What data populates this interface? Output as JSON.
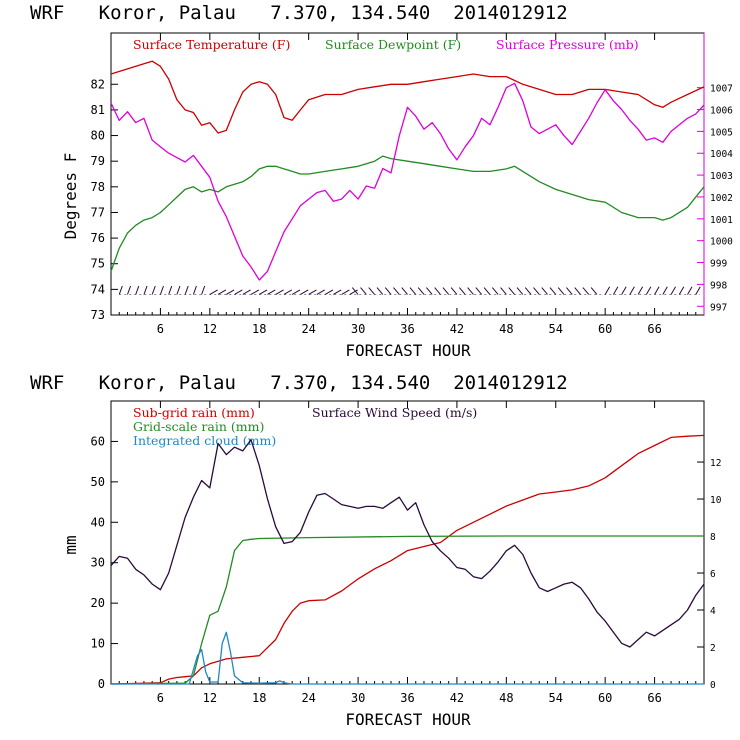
{
  "colors": {
    "temperature": "#cc0000",
    "dewpoint": "#228b22",
    "pressure": "#dd00dd",
    "subgrid_rain": "#cc0000",
    "gridscale_rain": "#228b22",
    "cloud": "#1e88c8",
    "wind": "#2a0a3a",
    "axis": "#000000"
  },
  "chart_data": [
    {
      "type": "line",
      "title": "WRF   Koror, Palau   7.370, 134.540  2014012912",
      "xlabel": "FORECAST HOUR",
      "ylabel": "Degrees F",
      "y2label": "",
      "xlim": [
        0,
        72
      ],
      "ylim": [
        73,
        84
      ],
      "y2lim": [
        996.6,
        1009.5
      ],
      "xticks": [
        "6",
        "12",
        "18",
        "24",
        "30",
        "36",
        "42",
        "48",
        "54",
        "60",
        "66"
      ],
      "yticks": [
        "73",
        "74",
        "75",
        "76",
        "77",
        "78",
        "79",
        "80",
        "81",
        "82"
      ],
      "y2ticks": [
        "997",
        "998",
        "999",
        "1000",
        "1001",
        "1002",
        "1003",
        "1004",
        "1005",
        "1006",
        "1007"
      ],
      "legend_placement": "top",
      "series": [
        {
          "name": "Surface Temperature (F)",
          "axis": "left",
          "x": [
            0,
            2,
            4,
            5,
            6,
            7,
            8,
            9,
            10,
            11,
            12,
            13,
            14,
            15,
            16,
            17,
            18,
            19,
            20,
            21,
            22,
            23,
            24,
            26,
            28,
            30,
            32,
            34,
            36,
            38,
            40,
            42,
            44,
            46,
            48,
            50,
            52,
            54,
            56,
            58,
            60,
            62,
            64,
            66,
            67,
            68,
            70,
            72
          ],
          "y": [
            82.4,
            82.6,
            82.8,
            82.9,
            82.7,
            82.2,
            81.4,
            81.0,
            80.9,
            80.4,
            80.5,
            80.1,
            80.2,
            81.0,
            81.7,
            82.0,
            82.1,
            82.0,
            81.6,
            80.7,
            80.6,
            81.0,
            81.4,
            81.6,
            81.6,
            81.8,
            81.9,
            82.0,
            82.0,
            82.1,
            82.2,
            82.3,
            82.4,
            82.3,
            82.3,
            82.0,
            81.8,
            81.6,
            81.6,
            81.8,
            81.8,
            81.7,
            81.6,
            81.2,
            81.1,
            81.3,
            81.6,
            81.9
          ]
        },
        {
          "name": "Surface Dewpoint (F)",
          "axis": "left",
          "x": [
            0,
            1,
            2,
            3,
            4,
            5,
            6,
            7,
            8,
            9,
            10,
            11,
            12,
            13,
            14,
            15,
            16,
            17,
            18,
            19,
            20,
            21,
            22,
            23,
            24,
            26,
            28,
            30,
            32,
            33,
            34,
            36,
            38,
            40,
            42,
            44,
            46,
            48,
            49,
            50,
            52,
            54,
            56,
            58,
            60,
            62,
            64,
            66,
            67,
            68,
            70,
            72
          ],
          "y": [
            74.7,
            75.6,
            76.2,
            76.5,
            76.7,
            76.8,
            77.0,
            77.3,
            77.6,
            77.9,
            78.0,
            77.8,
            77.9,
            77.8,
            78.0,
            78.1,
            78.2,
            78.4,
            78.7,
            78.8,
            78.8,
            78.7,
            78.6,
            78.5,
            78.5,
            78.6,
            78.7,
            78.8,
            79.0,
            79.2,
            79.1,
            79.0,
            78.9,
            78.8,
            78.7,
            78.6,
            78.6,
            78.7,
            78.8,
            78.6,
            78.2,
            77.9,
            77.7,
            77.5,
            77.4,
            77.0,
            76.8,
            76.8,
            76.7,
            76.8,
            77.2,
            78.0
          ]
        },
        {
          "name": "Surface Pressure (mb)",
          "axis": "right",
          "x": [
            0,
            1,
            2,
            3,
            4,
            5,
            6,
            7,
            8,
            9,
            10,
            11,
            12,
            13,
            14,
            15,
            16,
            17,
            18,
            19,
            20,
            21,
            22,
            23,
            24,
            25,
            26,
            27,
            28,
            29,
            30,
            31,
            32,
            33,
            34,
            35,
            36,
            37,
            38,
            39,
            40,
            41,
            42,
            43,
            44,
            45,
            46,
            47,
            48,
            49,
            50,
            51,
            52,
            53,
            54,
            55,
            56,
            57,
            58,
            59,
            60,
            61,
            62,
            63,
            64,
            65,
            66,
            67,
            68,
            69,
            70,
            71,
            72
          ],
          "y": [
            1006.3,
            1005.5,
            1005.9,
            1005.4,
            1005.6,
            1004.6,
            1004.3,
            1004.0,
            1003.8,
            1003.6,
            1003.9,
            1003.4,
            1002.9,
            1001.8,
            1001.1,
            1000.2,
            999.3,
            998.8,
            998.2,
            998.6,
            999.5,
            1000.4,
            1001.0,
            1001.6,
            1001.9,
            1002.2,
            1002.3,
            1001.8,
            1001.9,
            1002.3,
            1001.9,
            1002.5,
            1002.4,
            1003.3,
            1003.1,
            1004.8,
            1006.1,
            1005.7,
            1005.1,
            1005.4,
            1004.9,
            1004.2,
            1003.7,
            1004.3,
            1004.8,
            1005.6,
            1005.3,
            1006.1,
            1007.0,
            1007.2,
            1006.4,
            1005.2,
            1004.9,
            1005.1,
            1005.3,
            1004.8,
            1004.4,
            1005.0,
            1005.6,
            1006.3,
            1006.9,
            1006.4,
            1006.0,
            1005.5,
            1005.1,
            1004.6,
            1004.7,
            1004.5,
            1005.0,
            1005.3,
            1005.6,
            1005.8,
            1006.2
          ]
        }
      ],
      "wind_barbs_row_y": 73.8
    },
    {
      "type": "line",
      "title": "WRF   Koror, Palau   7.370, 134.540  2014012912",
      "xlabel": "FORECAST HOUR",
      "ylabel": "mm",
      "y2label": "",
      "xlim": [
        0,
        72
      ],
      "ylim": [
        0,
        70
      ],
      "y2lim": [
        0,
        15.3
      ],
      "xticks": [
        "6",
        "12",
        "18",
        "24",
        "30",
        "36",
        "42",
        "48",
        "54",
        "60",
        "66"
      ],
      "yticks": [
        "0",
        "10",
        "20",
        "30",
        "40",
        "50",
        "60"
      ],
      "y2ticks": [
        "0",
        "2",
        "4",
        "6",
        "8",
        "10",
        "12"
      ],
      "legend_placement": "top-left",
      "series": [
        {
          "name": "Sub-grid rain (mm)",
          "axis": "left",
          "x": [
            0,
            6,
            7,
            8,
            9,
            10,
            11,
            12,
            14,
            16,
            18,
            20,
            21,
            22,
            23,
            24,
            26,
            28,
            30,
            32,
            34,
            36,
            38,
            40,
            42,
            44,
            46,
            48,
            50,
            52,
            54,
            56,
            58,
            60,
            62,
            64,
            66,
            68,
            70,
            72
          ],
          "y": [
            0,
            0.3,
            1.2,
            1.6,
            1.8,
            2.0,
            4.0,
            5.0,
            6.2,
            6.6,
            7.0,
            11.0,
            15.0,
            18.0,
            20.0,
            20.6,
            20.8,
            23.0,
            26.0,
            28.5,
            30.5,
            33.0,
            34.0,
            35.0,
            38.0,
            40.0,
            42.0,
            44.0,
            45.5,
            47.0,
            47.5,
            48.0,
            49.0,
            51.0,
            54.0,
            57.0,
            59.0,
            61.0,
            61.3,
            61.5
          ]
        },
        {
          "name": "Grid-scale rain (mm)",
          "axis": "left",
          "x": [
            0,
            9,
            10,
            11,
            12,
            13,
            14,
            15,
            16,
            17,
            18,
            24,
            36,
            48,
            60,
            72
          ],
          "y": [
            0,
            0.2,
            2.0,
            10.0,
            17.0,
            18.0,
            24.0,
            33.0,
            35.5,
            35.8,
            36.0,
            36.2,
            36.5,
            36.6,
            36.6,
            36.6
          ]
        },
        {
          "name": "Integrated cloud (mm)",
          "axis": "left",
          "x": [
            0,
            9.5,
            10.5,
            11,
            11.5,
            12,
            13,
            13.5,
            14,
            14.5,
            15,
            16,
            18,
            20,
            20.5,
            21,
            22,
            72
          ],
          "y": [
            0,
            0,
            7.0,
            8.5,
            3.0,
            0.5,
            0.5,
            10.0,
            12.8,
            8.0,
            2.0,
            0.3,
            0.2,
            0.3,
            0.8,
            0.3,
            0,
            0
          ]
        },
        {
          "name": "Surface Wind Speed (m/s)",
          "axis": "right",
          "x": [
            0,
            1,
            2,
            3,
            4,
            5,
            6,
            7,
            8,
            9,
            10,
            11,
            12,
            13,
            14,
            15,
            16,
            17,
            18,
            19,
            20,
            21,
            22,
            23,
            24,
            25,
            26,
            27,
            28,
            29,
            30,
            31,
            32,
            33,
            34,
            35,
            36,
            37,
            38,
            39,
            40,
            41,
            42,
            43,
            44,
            45,
            46,
            47,
            48,
            49,
            50,
            51,
            52,
            53,
            54,
            55,
            56,
            57,
            58,
            59,
            60,
            61,
            62,
            63,
            64,
            65,
            66,
            67,
            68,
            69,
            70,
            71,
            72
          ],
          "y": [
            6.4,
            6.9,
            6.8,
            6.2,
            5.9,
            5.4,
            5.1,
            6.0,
            7.5,
            9.0,
            10.1,
            11.0,
            10.6,
            13.0,
            12.4,
            12.8,
            12.6,
            13.2,
            11.8,
            10.0,
            8.5,
            7.6,
            7.7,
            8.2,
            9.3,
            10.2,
            10.3,
            10.0,
            9.7,
            9.6,
            9.5,
            9.6,
            9.6,
            9.5,
            9.8,
            10.1,
            9.4,
            9.8,
            8.6,
            7.7,
            7.2,
            6.8,
            6.3,
            6.2,
            5.8,
            5.7,
            6.1,
            6.6,
            7.2,
            7.5,
            7.0,
            6.0,
            5.2,
            5.0,
            5.2,
            5.4,
            5.5,
            5.2,
            4.6,
            3.9,
            3.4,
            2.8,
            2.2,
            2.0,
            2.4,
            2.8,
            2.6,
            2.9,
            3.2,
            3.5,
            4.0,
            4.8,
            5.4
          ]
        }
      ]
    }
  ]
}
